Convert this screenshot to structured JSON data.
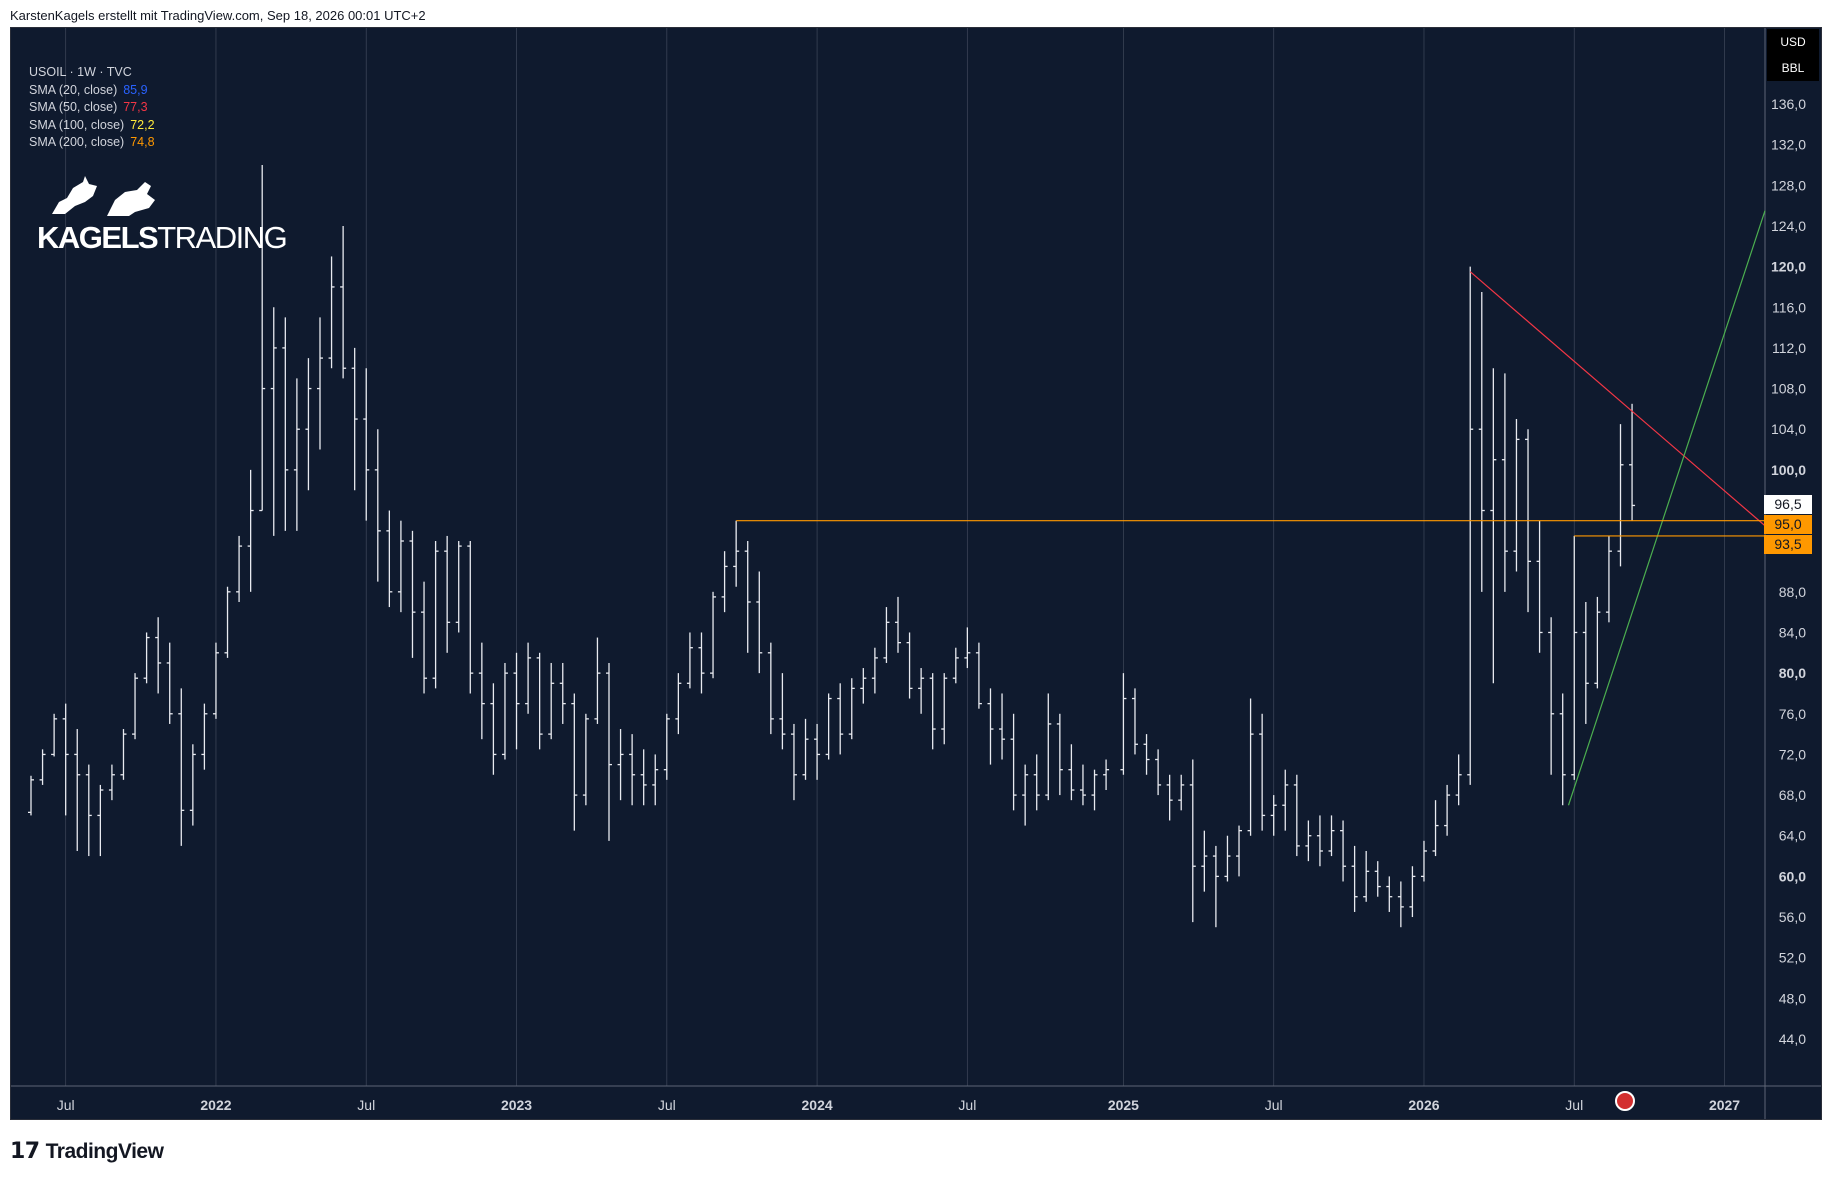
{
  "header": {
    "text": "KarstenKagels erstellt mit TradingView.com, Sep 18, 2026 00:01 UTC+2"
  },
  "footer": {
    "logo_text": "TradingView"
  },
  "legend": {
    "title": "USOIL · 1W · TVC",
    "indicators": [
      {
        "label": "SMA (20, close)",
        "value": "85,9",
        "color": "#2962ff"
      },
      {
        "label": "SMA (50, close)",
        "value": "77,3",
        "color": "#f23645"
      },
      {
        "label": "SMA (100, close)",
        "value": "72,2",
        "color": "#ffeb3b"
      },
      {
        "label": "SMA (200, close)",
        "value": "74,8",
        "color": "#ff9800"
      }
    ]
  },
  "logo": {
    "text_bold": "KAGELS",
    "text_light": "TRADING"
  },
  "unit": {
    "currency": "USD",
    "unit": "BBL"
  },
  "price_tags": [
    {
      "label": "96,5",
      "value": 96.5,
      "bg": "#ffffff",
      "color": "#131722"
    },
    {
      "label": "95,0",
      "value": 95.0,
      "bg": "#ff9800",
      "color": "#131722"
    },
    {
      "label": "93,5",
      "value": 93.5,
      "bg": "#ff9800",
      "color": "#131722"
    }
  ],
  "colors": {
    "background": "#0f1a2e",
    "grid": "#3a4356",
    "bars": "#e8eaf0",
    "resistance": "#f23645",
    "support": "#4caf50",
    "level": "#ff9800"
  },
  "chart_data": {
    "type": "ohlc",
    "symbol": "USOIL",
    "interval": "1W",
    "ylim": [
      40,
      140
    ],
    "xlim": [
      "2021-05-24",
      "2027-02-22"
    ],
    "y_ticks": [
      {
        "label": "44,0",
        "value": 44
      },
      {
        "label": "48,0",
        "value": 48
      },
      {
        "label": "52,0",
        "value": 52
      },
      {
        "label": "56,0",
        "value": 56
      },
      {
        "label": "60,0",
        "value": 60,
        "bold": true
      },
      {
        "label": "64,0",
        "value": 64
      },
      {
        "label": "68,0",
        "value": 68
      },
      {
        "label": "72,0",
        "value": 72
      },
      {
        "label": "76,0",
        "value": 76
      },
      {
        "label": "80,0",
        "value": 80,
        "bold": true
      },
      {
        "label": "84,0",
        "value": 84
      },
      {
        "label": "88,0",
        "value": 88
      },
      {
        "label": "100,0",
        "value": 100,
        "bold": true
      },
      {
        "label": "104,0",
        "value": 104
      },
      {
        "label": "108,0",
        "value": 108
      },
      {
        "label": "112,0",
        "value": 112
      },
      {
        "label": "116,0",
        "value": 116
      },
      {
        "label": "120,0",
        "value": 120,
        "bold": true
      },
      {
        "label": "124,0",
        "value": 124
      },
      {
        "label": "128,0",
        "value": 128
      },
      {
        "label": "132,0",
        "value": 132
      },
      {
        "label": "136,0",
        "value": 136
      }
    ],
    "x_ticks": [
      {
        "label": "Jul",
        "date": "2021-07-05"
      },
      {
        "label": "2022",
        "date": "2022-01-03",
        "bold": true
      },
      {
        "label": "Jul",
        "date": "2022-07-04"
      },
      {
        "label": "2023",
        "date": "2023-01-02",
        "bold": true
      },
      {
        "label": "Jul",
        "date": "2023-07-03"
      },
      {
        "label": "2024",
        "date": "2024-01-01",
        "bold": true
      },
      {
        "label": "Jul",
        "date": "2024-07-01"
      },
      {
        "label": "2025",
        "date": "2025-01-06",
        "bold": true
      },
      {
        "label": "Jul",
        "date": "2025-07-07"
      },
      {
        "label": "2026",
        "date": "2026-01-05",
        "bold": true
      },
      {
        "label": "Jul",
        "date": "2026-07-06"
      },
      {
        "label": "2027",
        "date": "2027-01-04",
        "bold": true
      }
    ],
    "lines": [
      {
        "name": "resistance",
        "color": "#f23645",
        "points": [
          [
            "2026-03-02",
            119.5
          ],
          [
            "2027-02-22",
            94.5
          ]
        ]
      },
      {
        "name": "support",
        "color": "#4caf50",
        "points": [
          [
            "2026-06-29",
            67.0
          ],
          [
            "2027-02-22",
            125.5
          ]
        ]
      },
      {
        "name": "level-95",
        "color": "#ff9800",
        "points": [
          [
            "2023-09-25",
            95.0
          ],
          [
            "2027-02-22",
            95.0
          ]
        ]
      },
      {
        "name": "level-93.5",
        "color": "#ff9800",
        "points": [
          [
            "2026-07-06",
            93.5
          ],
          [
            "2027-02-22",
            93.5
          ]
        ]
      }
    ],
    "bars": [
      [
        "2021-05-24",
        66.3,
        69.9,
        66.0,
        69.5
      ],
      [
        "2021-06-07",
        69.5,
        72.5,
        69.0,
        72.0
      ],
      [
        "2021-06-21",
        72.0,
        76.0,
        71.8,
        75.5
      ],
      [
        "2021-07-05",
        75.5,
        77.0,
        66.0,
        72.0
      ],
      [
        "2021-07-19",
        72.0,
        74.5,
        62.5,
        70.0
      ],
      [
        "2021-08-02",
        70.0,
        71.0,
        62.0,
        66.0
      ],
      [
        "2021-08-16",
        66.0,
        69.0,
        62.0,
        68.5
      ],
      [
        "2021-08-30",
        68.5,
        71.0,
        67.5,
        70.0
      ],
      [
        "2021-09-13",
        70.0,
        74.5,
        69.5,
        74.0
      ],
      [
        "2021-09-27",
        74.0,
        80.0,
        73.5,
        79.5
      ],
      [
        "2021-10-11",
        79.5,
        84.0,
        79.0,
        83.5
      ],
      [
        "2021-10-25",
        83.5,
        85.5,
        78.0,
        81.0
      ],
      [
        "2021-11-08",
        81.0,
        83.0,
        75.0,
        76.0
      ],
      [
        "2021-11-22",
        76.0,
        78.5,
        63.0,
        66.5
      ],
      [
        "2021-12-06",
        66.5,
        73.0,
        65.0,
        72.0
      ],
      [
        "2021-12-20",
        72.0,
        77.0,
        70.5,
        76.0
      ],
      [
        "2022-01-03",
        76.0,
        83.0,
        75.5,
        82.0
      ],
      [
        "2022-01-17",
        82.0,
        88.5,
        81.5,
        88.0
      ],
      [
        "2022-01-31",
        88.0,
        93.5,
        87.0,
        92.5
      ],
      [
        "2022-02-14",
        92.5,
        100.0,
        88.0,
        96.0
      ],
      [
        "2022-02-28",
        96.0,
        130.0,
        96.0,
        108.0
      ],
      [
        "2022-03-14",
        108.0,
        116.0,
        93.5,
        112.0
      ],
      [
        "2022-03-28",
        112.0,
        115.0,
        94.0,
        100.0
      ],
      [
        "2022-04-11",
        100.0,
        109.0,
        94.0,
        104.0
      ],
      [
        "2022-04-25",
        104.0,
        111.0,
        98.0,
        108.0
      ],
      [
        "2022-05-09",
        108.0,
        115.0,
        102.0,
        111.0
      ],
      [
        "2022-05-23",
        111.0,
        121.0,
        110.0,
        118.0
      ],
      [
        "2022-06-06",
        118.0,
        124.0,
        109.0,
        110.0
      ],
      [
        "2022-06-20",
        110.0,
        112.0,
        98.0,
        105.0
      ],
      [
        "2022-07-04",
        105.0,
        110.0,
        95.0,
        100.0
      ],
      [
        "2022-07-18",
        100.0,
        104.0,
        89.0,
        94.0
      ],
      [
        "2022-08-01",
        94.0,
        96.0,
        86.5,
        88.0
      ],
      [
        "2022-08-15",
        88.0,
        95.0,
        86.0,
        93.0
      ],
      [
        "2022-08-29",
        93.0,
        94.0,
        81.5,
        86.0
      ],
      [
        "2022-09-12",
        86.0,
        89.0,
        78.0,
        79.5
      ],
      [
        "2022-09-26",
        79.5,
        93.0,
        78.5,
        92.0
      ],
      [
        "2022-10-10",
        92.0,
        93.5,
        82.0,
        85.0
      ],
      [
        "2022-10-24",
        85.0,
        93.0,
        84.0,
        92.5
      ],
      [
        "2022-11-07",
        92.5,
        93.0,
        78.0,
        80.0
      ],
      [
        "2022-11-21",
        80.0,
        83.0,
        73.5,
        77.0
      ],
      [
        "2022-12-05",
        77.0,
        79.0,
        70.0,
        72.0
      ],
      [
        "2022-12-19",
        72.0,
        81.0,
        71.5,
        80.0
      ],
      [
        "2023-01-02",
        80.0,
        82.0,
        72.5,
        77.0
      ],
      [
        "2023-01-16",
        77.0,
        83.0,
        76.0,
        81.5
      ],
      [
        "2023-01-30",
        81.5,
        82.0,
        72.5,
        74.0
      ],
      [
        "2023-02-13",
        74.0,
        81.0,
        73.5,
        79.0
      ],
      [
        "2023-02-27",
        79.0,
        81.0,
        75.0,
        77.0
      ],
      [
        "2023-03-13",
        77.0,
        78.0,
        64.5,
        68.0
      ],
      [
        "2023-03-27",
        68.0,
        76.0,
        67.0,
        75.5
      ],
      [
        "2023-04-10",
        75.5,
        83.5,
        75.0,
        80.0
      ],
      [
        "2023-04-24",
        80.0,
        81.0,
        63.5,
        71.0
      ],
      [
        "2023-05-08",
        71.0,
        74.5,
        67.5,
        72.0
      ],
      [
        "2023-05-22",
        72.0,
        74.0,
        67.0,
        70.0
      ],
      [
        "2023-06-05",
        70.0,
        72.5,
        67.0,
        69.0
      ],
      [
        "2023-06-19",
        69.0,
        72.0,
        67.0,
        70.5
      ],
      [
        "2023-07-03",
        70.5,
        76.0,
        69.5,
        75.5
      ],
      [
        "2023-07-17",
        75.5,
        80.0,
        74.0,
        79.0
      ],
      [
        "2023-07-31",
        79.0,
        84.0,
        78.5,
        82.5
      ],
      [
        "2023-08-14",
        82.5,
        84.0,
        78.0,
        80.0
      ],
      [
        "2023-08-28",
        80.0,
        88.0,
        79.5,
        87.5
      ],
      [
        "2023-09-11",
        87.5,
        92.0,
        86.0,
        90.5
      ],
      [
        "2023-09-25",
        90.5,
        95.0,
        88.5,
        92.0
      ],
      [
        "2023-10-09",
        92.0,
        93.0,
        82.0,
        87.0
      ],
      [
        "2023-10-23",
        87.0,
        90.0,
        80.0,
        82.0
      ],
      [
        "2023-11-06",
        82.0,
        83.0,
        74.0,
        75.5
      ],
      [
        "2023-11-20",
        75.5,
        80.0,
        72.5,
        74.0
      ],
      [
        "2023-12-04",
        74.0,
        75.0,
        67.5,
        70.0
      ],
      [
        "2023-12-18",
        70.0,
        75.5,
        69.5,
        73.5
      ],
      [
        "2024-01-01",
        73.5,
        75.0,
        69.5,
        72.0
      ],
      [
        "2024-01-15",
        72.0,
        78.0,
        71.5,
        77.5
      ],
      [
        "2024-01-29",
        77.5,
        79.0,
        72.0,
        74.0
      ],
      [
        "2024-02-12",
        74.0,
        79.5,
        73.5,
        78.5
      ],
      [
        "2024-02-26",
        78.5,
        80.5,
        77.0,
        79.5
      ],
      [
        "2024-03-11",
        79.5,
        82.5,
        78.0,
        81.5
      ],
      [
        "2024-03-25",
        81.5,
        86.5,
        81.0,
        85.0
      ],
      [
        "2024-04-08",
        85.0,
        87.5,
        82.0,
        83.0
      ],
      [
        "2024-04-22",
        83.0,
        84.0,
        77.5,
        78.5
      ],
      [
        "2024-05-06",
        78.5,
        80.5,
        76.0,
        79.5
      ],
      [
        "2024-05-20",
        79.5,
        80.0,
        72.5,
        74.5
      ],
      [
        "2024-06-03",
        74.5,
        80.0,
        73.0,
        79.5
      ],
      [
        "2024-06-17",
        79.5,
        82.5,
        79.0,
        81.5
      ],
      [
        "2024-07-01",
        81.5,
        84.5,
        80.5,
        82.0
      ],
      [
        "2024-07-15",
        82.0,
        83.0,
        76.5,
        77.0
      ],
      [
        "2024-07-29",
        77.0,
        78.5,
        71.0,
        74.5
      ],
      [
        "2024-08-12",
        74.5,
        78.0,
        71.5,
        73.5
      ],
      [
        "2024-08-26",
        73.5,
        76.0,
        66.5,
        68.0
      ],
      [
        "2024-09-09",
        68.0,
        71.0,
        65.0,
        70.0
      ],
      [
        "2024-09-23",
        70.0,
        72.0,
        66.5,
        68.0
      ],
      [
        "2024-10-07",
        68.0,
        78.0,
        67.5,
        75.0
      ],
      [
        "2024-10-21",
        75.0,
        76.0,
        68.0,
        70.5
      ],
      [
        "2024-11-04",
        70.5,
        73.0,
        67.5,
        68.5
      ],
      [
        "2024-11-18",
        68.5,
        71.0,
        67.0,
        68.0
      ],
      [
        "2024-12-02",
        68.0,
        70.5,
        66.5,
        70.0
      ],
      [
        "2024-12-16",
        70.0,
        71.5,
        68.5,
        70.5
      ],
      [
        "2025-01-06",
        70.5,
        80.0,
        70.0,
        77.5
      ],
      [
        "2025-01-20",
        77.5,
        78.5,
        72.0,
        73.0
      ],
      [
        "2025-02-03",
        73.0,
        74.0,
        70.0,
        71.5
      ],
      [
        "2025-02-17",
        71.5,
        72.5,
        68.0,
        69.0
      ],
      [
        "2025-03-03",
        69.0,
        70.0,
        65.5,
        67.5
      ],
      [
        "2025-03-17",
        67.5,
        70.0,
        66.5,
        69.0
      ],
      [
        "2025-03-31",
        69.0,
        71.5,
        55.5,
        61.0
      ],
      [
        "2025-04-14",
        61.0,
        64.5,
        58.5,
        62.0
      ],
      [
        "2025-04-28",
        62.0,
        63.0,
        55.0,
        60.0
      ],
      [
        "2025-05-12",
        60.0,
        64.0,
        59.5,
        62.0
      ],
      [
        "2025-05-26",
        62.0,
        65.0,
        60.0,
        64.5
      ],
      [
        "2025-06-09",
        64.5,
        77.5,
        64.0,
        74.0
      ],
      [
        "2025-06-23",
        74.0,
        76.0,
        64.5,
        66.0
      ],
      [
        "2025-07-07",
        66.0,
        68.0,
        64.0,
        67.0
      ],
      [
        "2025-07-21",
        67.0,
        70.5,
        64.5,
        69.0
      ],
      [
        "2025-08-04",
        69.0,
        70.0,
        62.0,
        63.0
      ],
      [
        "2025-08-18",
        63.0,
        65.5,
        61.5,
        64.0
      ],
      [
        "2025-09-01",
        64.0,
        66.0,
        61.0,
        62.5
      ],
      [
        "2025-09-15",
        62.5,
        66.0,
        62.0,
        64.5
      ],
      [
        "2025-09-29",
        64.5,
        65.5,
        59.5,
        61.0
      ],
      [
        "2025-10-13",
        61.0,
        63.0,
        56.5,
        58.0
      ],
      [
        "2025-10-27",
        58.0,
        62.5,
        57.5,
        60.5
      ],
      [
        "2025-11-10",
        60.5,
        61.5,
        58.0,
        59.0
      ],
      [
        "2025-11-24",
        59.0,
        60.0,
        56.5,
        58.0
      ],
      [
        "2025-12-08",
        58.0,
        59.5,
        55.0,
        57.0
      ],
      [
        "2025-12-22",
        57.0,
        61.0,
        56.0,
        60.0
      ],
      [
        "2026-01-05",
        60.0,
        63.5,
        59.5,
        62.5
      ],
      [
        "2026-01-19",
        62.5,
        67.5,
        62.0,
        65.0
      ],
      [
        "2026-02-02",
        65.0,
        69.0,
        64.0,
        68.0
      ],
      [
        "2026-02-16",
        68.0,
        72.0,
        67.0,
        70.0
      ],
      [
        "2026-03-02",
        70.0,
        120.0,
        69.0,
        104.0
      ],
      [
        "2026-03-16",
        104.0,
        117.5,
        88.0,
        96.0
      ],
      [
        "2026-03-30",
        96.0,
        110.0,
        79.0,
        101.0
      ],
      [
        "2026-04-13",
        101.0,
        109.5,
        88.0,
        92.0
      ],
      [
        "2026-04-27",
        92.0,
        105.0,
        90.0,
        103.0
      ],
      [
        "2026-05-11",
        103.0,
        104.0,
        86.0,
        91.0
      ],
      [
        "2026-05-25",
        91.0,
        95.0,
        82.0,
        84.0
      ],
      [
        "2026-06-08",
        84.0,
        85.5,
        70.0,
        76.0
      ],
      [
        "2026-06-22",
        76.0,
        78.0,
        67.0,
        70.0
      ],
      [
        "2026-07-06",
        70.0,
        93.5,
        69.5,
        84.0
      ],
      [
        "2026-07-20",
        84.0,
        87.0,
        75.0,
        79.0
      ],
      [
        "2026-08-03",
        79.0,
        87.5,
        78.5,
        86.0
      ],
      [
        "2026-08-17",
        86.0,
        93.5,
        85.0,
        92.0
      ],
      [
        "2026-08-31",
        92.0,
        104.5,
        90.5,
        100.5
      ],
      [
        "2026-09-14",
        100.5,
        106.5,
        95.0,
        96.5
      ]
    ]
  }
}
